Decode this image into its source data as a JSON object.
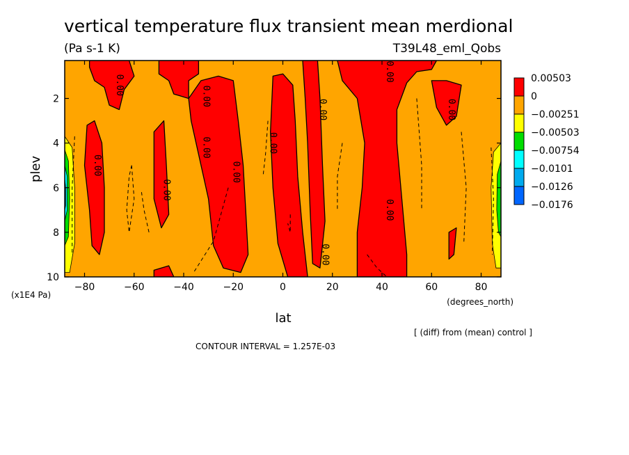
{
  "chart_data": {
    "type": "heatmap",
    "title": "vertical temperature flux transient mean merdional",
    "units": "(Pa s-1 K)",
    "experiment": "T39L48_eml_Qobs",
    "xlabel": "lat",
    "xunits": "(degrees_north)",
    "ylabel": "plev",
    "yunits": "(x1E4 Pa)",
    "xlim": [
      -88,
      88
    ],
    "ylim": [
      10,
      0.3
    ],
    "xticks": [
      -80,
      -60,
      -40,
      -20,
      0,
      20,
      40,
      60,
      80
    ],
    "yticks": [
      2,
      4,
      6,
      8,
      10
    ],
    "xtick_labels": [
      "−80",
      "−60",
      "−40",
      "−20",
      "0",
      "20",
      "40",
      "60",
      "80"
    ],
    "ytick_labels": [
      "2",
      "4",
      "6",
      "8",
      "10"
    ],
    "note": "[ (diff) from (mean) control ]",
    "contour_interval": "CONTOUR INTERVAL = 1.257E-03",
    "contour_label": "0.00",
    "colorbar": [
      {
        "label": "0.00503",
        "color": "#ff0000"
      },
      {
        "label": "0",
        "color": "#ffa500"
      },
      {
        "label": "−0.00251",
        "color": "#ffff00"
      },
      {
        "label": "−0.00503",
        "color": "#00dd00"
      },
      {
        "label": "−0.00754",
        "color": "#00ffff"
      },
      {
        "label": "−0.0101",
        "color": "#00aaee"
      },
      {
        "label": "−0.0126",
        "color": "#0066ff"
      },
      {
        "label": "−0.0176",
        "color": ""
      }
    ],
    "positive_bands": [
      {
        "top": [
          [
            -76,
            1.0
          ],
          [
            -64,
            0.3
          ]
        ],
        "center_lat": -67,
        "bottom": 2.4,
        "width": 5
      },
      {
        "center_lat": -75,
        "top": 3.5,
        "bottom": 8.5,
        "width": 4
      },
      {
        "center_lat": -49,
        "top": 3.0,
        "bottom": 7.0,
        "width": 3
      },
      {
        "center_lat": -25,
        "top": 1.0,
        "bottom": 9.7,
        "width": 8
      },
      {
        "center_lat": 0,
        "top": 1.0,
        "bottom": 10.0,
        "width": 6
      },
      {
        "center_lat": 13,
        "top": 0.3,
        "bottom": 9.7,
        "width": 4
      },
      {
        "center_lat": 40,
        "top": 0.3,
        "bottom": 10.0,
        "width": 12
      },
      {
        "center_lat": 65,
        "top": 1.3,
        "bottom": 3.5,
        "width": 6
      }
    ],
    "contour_labels_at": [
      [
        -67,
        1.4
      ],
      [
        -32,
        1.9
      ],
      [
        -76,
        5.0
      ],
      [
        -48,
        6.1
      ],
      [
        -32,
        4.2
      ],
      [
        -20,
        5.3
      ],
      [
        -5,
        4.0
      ],
      [
        15,
        2.5
      ],
      [
        16,
        9.0
      ],
      [
        42,
        0.8
      ],
      [
        42,
        7.0
      ],
      [
        67,
        2.5
      ]
    ]
  }
}
